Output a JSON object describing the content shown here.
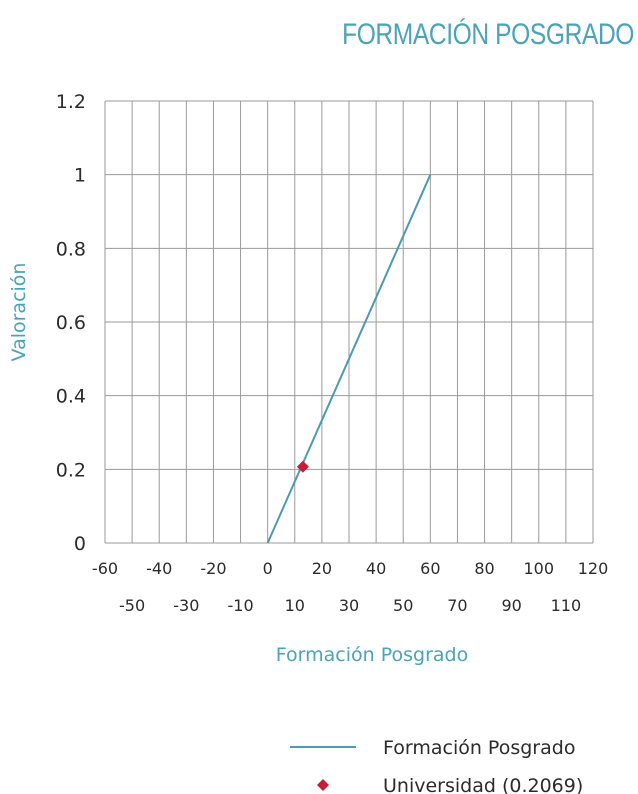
{
  "chart_data": {
    "type": "line",
    "title": "FORMACIÓN POSGRADO",
    "xlabel": "Formación Posgrado",
    "ylabel": "Valoración",
    "xlim": [
      -60,
      120
    ],
    "ylim": [
      0,
      1.2
    ],
    "x_ticks_upper": [
      -60,
      -40,
      -20,
      0,
      20,
      40,
      60,
      80,
      100,
      120
    ],
    "x_ticks_lower": [
      -50,
      -30,
      -10,
      10,
      30,
      50,
      70,
      90,
      110
    ],
    "y_ticks": [
      "0",
      "0.2",
      "0.4",
      "0.6",
      "0.8",
      "1",
      "1.2"
    ],
    "y_tick_values": [
      0,
      0.2,
      0.4,
      0.6,
      0.8,
      1,
      1.2
    ],
    "grid": true,
    "legend_position": "bottom-right",
    "series": [
      {
        "name": "Formación Posgrado",
        "kind": "line",
        "color": "#4a9bb0",
        "x": [
          0,
          60
        ],
        "y": [
          0,
          1
        ]
      },
      {
        "name": "Universidad (0.2069)",
        "kind": "point",
        "marker": "diamond",
        "color": "#c41e3a",
        "x": [
          13
        ],
        "y": [
          0.2069
        ]
      }
    ]
  }
}
